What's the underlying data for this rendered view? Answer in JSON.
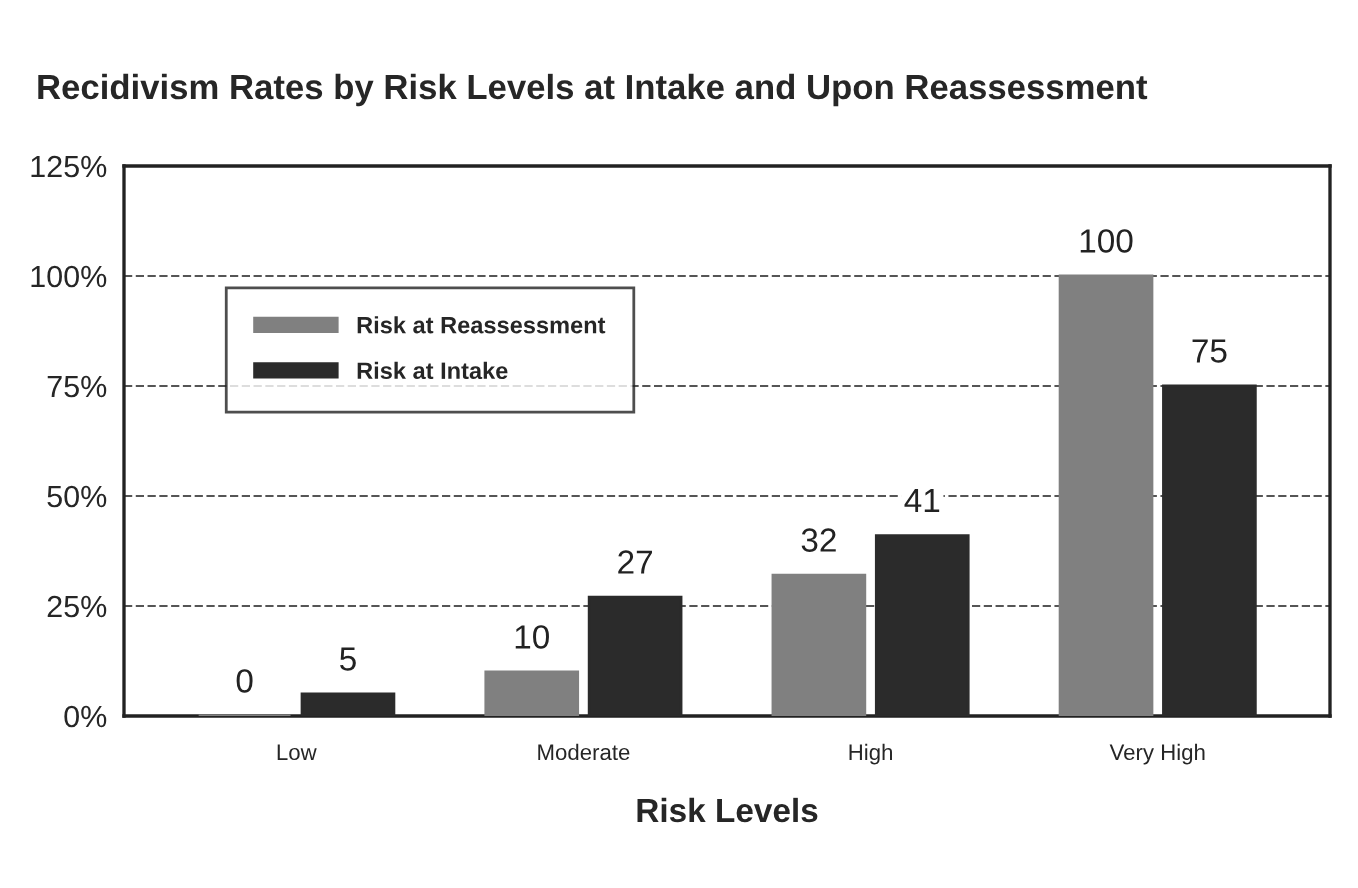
{
  "chart_data": {
    "type": "bar",
    "title": "Recidivism Rates by Risk Levels at Intake and Upon Reassessment",
    "xlabel": "Risk Levels",
    "categories": [
      "Low",
      "Moderate",
      "High",
      "Very High"
    ],
    "series": [
      {
        "name": "Risk at Reassessment",
        "color": "#808080",
        "values": [
          0,
          10,
          32,
          100
        ]
      },
      {
        "name": "Risk at Intake",
        "color": "#2b2b2b",
        "values": [
          5,
          27,
          41,
          75
        ]
      }
    ],
    "ylim": [
      0,
      125
    ],
    "yticks": [
      {
        "value": 0,
        "label": "0%"
      },
      {
        "value": 25,
        "label": "25%"
      },
      {
        "value": 50,
        "label": "50%"
      },
      {
        "value": 75,
        "label": "75%"
      },
      {
        "value": 100,
        "label": "100%"
      },
      {
        "value": 125,
        "label": "125%"
      }
    ],
    "grid": "y",
    "legend": "top left",
    "data_labels": true
  }
}
